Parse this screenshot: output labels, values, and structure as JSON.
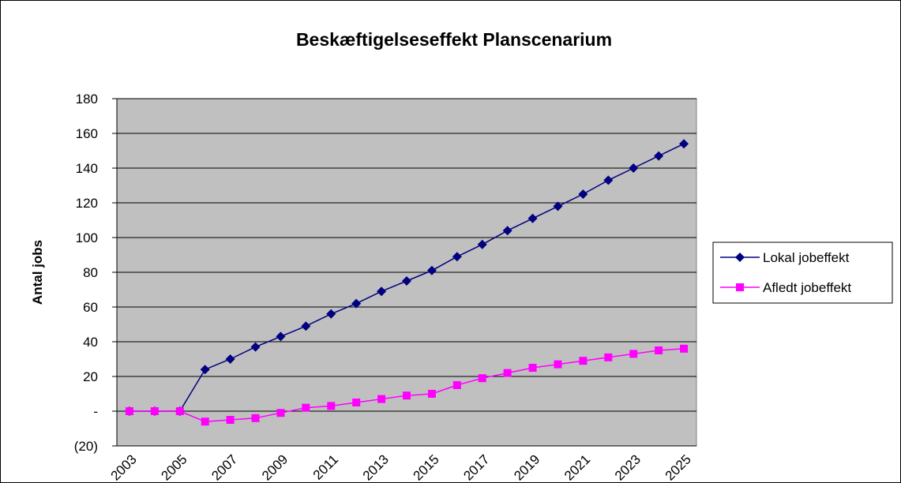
{
  "chart_data": {
    "type": "line",
    "title": "Beskæftigelseseffekt Planscenarium",
    "y_label": "Antal jobs",
    "categories": [
      "2003",
      null,
      "2005",
      null,
      "2007",
      null,
      "2009",
      null,
      "2011",
      null,
      "2013",
      null,
      "2015",
      null,
      "2017",
      null,
      "2019",
      null,
      "2021",
      null,
      "2023",
      null,
      "2025"
    ],
    "series": [
      {
        "name": "Lokal jobeffekt",
        "color": "#000080",
        "marker": "diamond",
        "values": [
          0,
          0,
          0,
          24,
          30,
          37,
          43,
          49,
          56,
          62,
          69,
          75,
          81,
          89,
          96,
          104,
          111,
          118,
          125,
          133,
          140,
          147,
          154
        ]
      },
      {
        "name": "Afledt jobeffekt",
        "color": "#ff00ff",
        "marker": "square",
        "values": [
          0,
          0,
          0,
          -6,
          -5,
          -4,
          -1,
          2,
          3,
          5,
          7,
          9,
          10,
          15,
          19,
          22,
          25,
          27,
          29,
          31,
          33,
          35,
          36
        ]
      }
    ],
    "ylim": [
      -20,
      180
    ],
    "yticks": [
      {
        "value": -20,
        "label": "(20)"
      },
      {
        "value": 0,
        "label": "-"
      },
      20,
      40,
      60,
      80,
      100,
      120,
      140,
      160,
      180
    ],
    "grid": true,
    "legend": "right"
  }
}
